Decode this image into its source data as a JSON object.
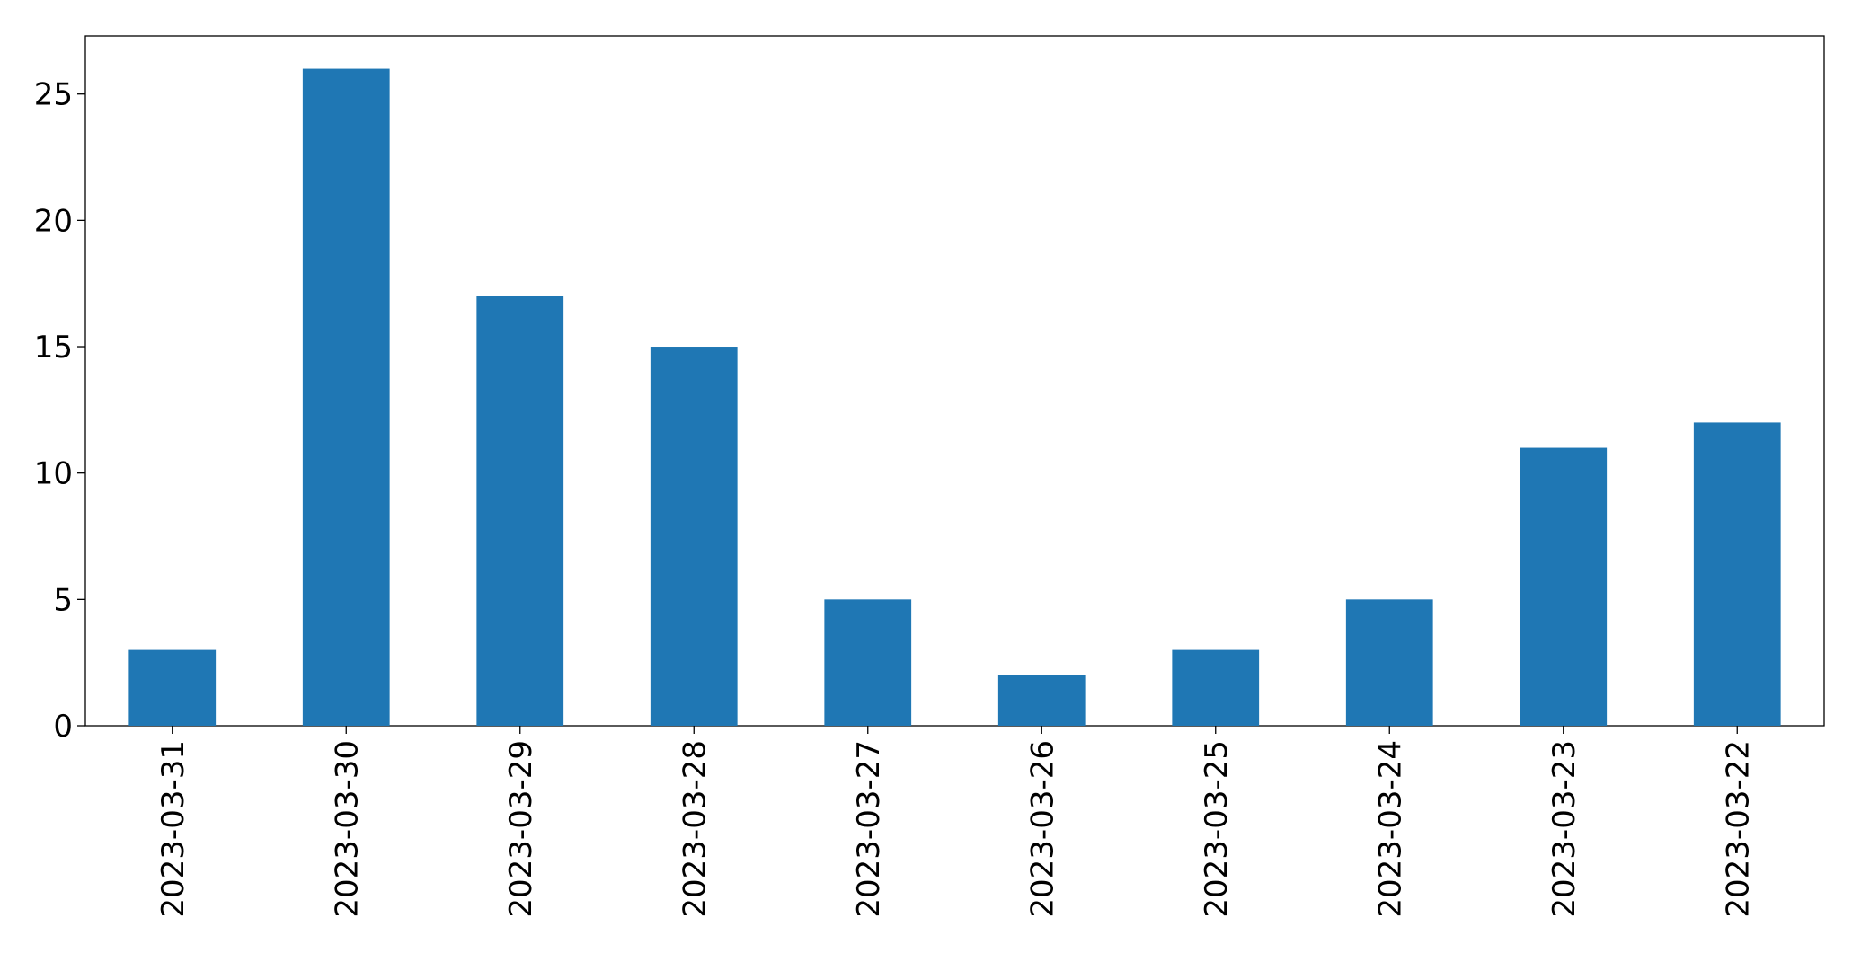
{
  "chart_data": {
    "type": "bar",
    "categories": [
      "2023-03-31",
      "2023-03-30",
      "2023-03-29",
      "2023-03-28",
      "2023-03-27",
      "2023-03-26",
      "2023-03-25",
      "2023-03-24",
      "2023-03-23",
      "2023-03-22"
    ],
    "values": [
      3,
      26,
      17,
      15,
      5,
      2,
      3,
      5,
      11,
      12
    ],
    "color": "#1f77b4",
    "ylim": [
      0,
      27.3
    ],
    "yticks": [
      0,
      5,
      10,
      15,
      20,
      25
    ],
    "grid": false
  }
}
